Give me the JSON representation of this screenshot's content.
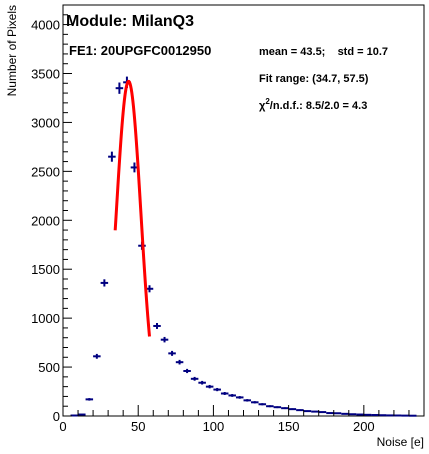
{
  "chart_data": {
    "type": "scatter",
    "xlabel": "Noise [e]",
    "ylabel": "Number of Pixels",
    "xlim": [
      0,
      240
    ],
    "ylim": [
      0,
      4200
    ],
    "x_ticks": [
      0,
      50,
      100,
      150,
      200
    ],
    "y_ticks": [
      0,
      500,
      1000,
      1500,
      2000,
      2500,
      3000,
      3500,
      4000
    ],
    "grid": false,
    "legend": "none",
    "annotations": {
      "module": "Module: MilanQ3",
      "fe": "FE1: 20UPGFC0012950",
      "stats": "mean = 43.5;    std = 10.7",
      "fit_range": "Fit range: (34.7, 57.5)",
      "chi2_symbol": "χ",
      "chi2_sup": "2",
      "chi2_text": "/n.d.f.: 8.5/2.0 = 4.3"
    },
    "bin_width": 5,
    "histogram": {
      "color": "#000080",
      "x": [
        7.5,
        12.5,
        17.5,
        22.5,
        27.5,
        32.5,
        37.5,
        42.5,
        47.5,
        52.5,
        57.5,
        62.5,
        67.5,
        72.5,
        77.5,
        82.5,
        87.5,
        92.5,
        97.5,
        102.5,
        107.5,
        112.5,
        117.5,
        122.5,
        127.5,
        132.5,
        137.5,
        142.5,
        147.5,
        152.5,
        157.5,
        162.5,
        167.5,
        172.5,
        177.5,
        182.5,
        187.5,
        192.5,
        197.5,
        202.5,
        207.5,
        212.5,
        217.5,
        222.5,
        227.5,
        232.5
      ],
      "y": [
        5,
        15,
        170,
        610,
        1360,
        2650,
        3350,
        3410,
        2540,
        1740,
        1300,
        920,
        780,
        640,
        550,
        460,
        380,
        340,
        300,
        270,
        230,
        210,
        190,
        160,
        140,
        120,
        100,
        90,
        80,
        70,
        60,
        50,
        45,
        40,
        30,
        28,
        22,
        18,
        15,
        12,
        10,
        8,
        6,
        5,
        4,
        3
      ]
    },
    "fit": {
      "type": "gaussian",
      "color": "#ff0000",
      "amplitude": 3420,
      "mean": 43.6,
      "sigma": 8.2,
      "range": [
        34.7,
        57.5
      ]
    }
  }
}
